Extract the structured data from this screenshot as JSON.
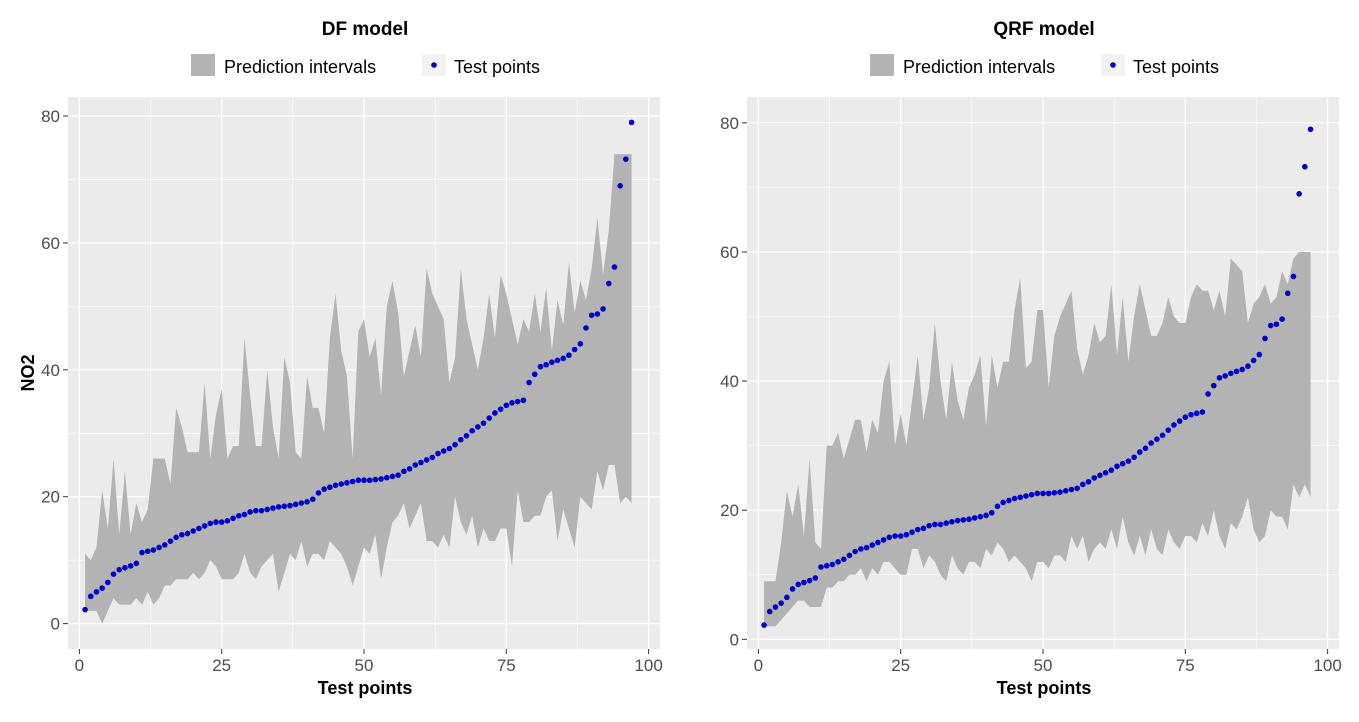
{
  "chart_data": [
    {
      "type": "area",
      "title": "DF model",
      "xlabel": "Test points",
      "ylabel": "NO2",
      "xlim": [
        -2,
        102
      ],
      "ylim": [
        -4,
        83
      ],
      "xticks": [
        0,
        25,
        50,
        75,
        100
      ],
      "yticks": [
        0,
        20,
        40,
        60,
        80
      ],
      "grid": true,
      "legend": {
        "position": "top",
        "items": [
          {
            "label": "Prediction intervals",
            "kind": "band",
            "color": "#b3b3b3"
          },
          {
            "label": "Test points",
            "kind": "point",
            "color": "#0000cd"
          }
        ]
      },
      "series": [
        {
          "name": "Prediction intervals",
          "x": [
            1,
            2,
            3,
            4,
            5,
            6,
            7,
            8,
            9,
            10,
            11,
            12,
            13,
            14,
            15,
            16,
            17,
            18,
            19,
            20,
            21,
            22,
            23,
            24,
            25,
            26,
            27,
            28,
            29,
            30,
            31,
            32,
            33,
            34,
            35,
            36,
            37,
            38,
            39,
            40,
            41,
            42,
            43,
            44,
            45,
            46,
            47,
            48,
            49,
            50,
            51,
            52,
            53,
            54,
            55,
            56,
            57,
            58,
            59,
            60,
            61,
            62,
            63,
            64,
            65,
            66,
            67,
            68,
            69,
            70,
            71,
            72,
            73,
            74,
            75,
            76,
            77,
            78,
            79,
            80,
            81,
            82,
            83,
            84,
            85,
            86,
            87,
            88,
            89,
            90,
            91,
            92,
            93,
            94,
            95,
            96,
            97
          ],
          "lower": [
            2,
            2,
            2,
            0,
            2,
            4,
            3,
            3,
            3,
            4,
            3,
            5,
            3,
            4,
            6,
            6,
            7,
            7,
            7,
            8,
            7,
            8,
            10,
            9,
            7,
            7,
            7,
            8,
            11,
            8,
            7,
            9,
            10,
            11,
            5,
            8,
            11,
            10,
            13,
            9,
            11,
            11,
            10,
            13,
            12,
            11,
            9,
            6,
            9,
            12,
            11,
            14,
            7,
            12,
            16,
            17,
            19,
            15,
            17,
            19,
            13,
            13,
            12,
            14,
            12,
            20,
            16,
            14,
            17,
            12,
            15,
            13,
            13,
            15,
            15,
            9,
            21,
            16,
            16,
            17,
            17,
            20,
            21,
            13,
            18,
            15,
            12,
            20,
            19,
            18,
            24,
            21,
            25,
            25,
            19,
            20,
            19
          ],
          "upper": [
            11,
            10,
            12,
            21,
            15,
            26,
            14,
            24,
            14,
            19,
            16,
            18,
            26,
            26,
            26,
            22,
            34,
            31,
            27,
            27,
            27,
            38,
            26,
            33,
            37,
            26,
            28,
            28,
            45,
            36,
            28,
            28,
            40,
            31,
            26,
            42,
            38,
            27,
            26,
            39,
            34,
            34,
            30,
            45,
            52,
            43,
            39,
            26,
            46,
            48,
            42,
            45,
            36,
            50,
            54,
            49,
            39,
            43,
            47,
            42,
            56,
            52,
            50,
            48,
            38,
            42,
            56,
            48,
            44,
            40,
            45,
            52,
            45,
            55,
            52,
            48,
            44,
            48,
            46,
            52,
            46,
            53,
            43,
            51,
            47,
            57,
            49,
            54,
            51,
            56,
            64,
            55,
            62,
            74,
            74,
            74,
            74
          ]
        },
        {
          "name": "Test points",
          "x": [
            1,
            2,
            3,
            4,
            5,
            6,
            7,
            8,
            9,
            10,
            11,
            12,
            13,
            14,
            15,
            16,
            17,
            18,
            19,
            20,
            21,
            22,
            23,
            24,
            25,
            26,
            27,
            28,
            29,
            30,
            31,
            32,
            33,
            34,
            35,
            36,
            37,
            38,
            39,
            40,
            41,
            42,
            43,
            44,
            45,
            46,
            47,
            48,
            49,
            50,
            51,
            52,
            53,
            54,
            55,
            56,
            57,
            58,
            59,
            60,
            61,
            62,
            63,
            64,
            65,
            66,
            67,
            68,
            69,
            70,
            71,
            72,
            73,
            74,
            75,
            76,
            77,
            78,
            79,
            80,
            81,
            82,
            83,
            84,
            85,
            86,
            87,
            88,
            89,
            90,
            91,
            92,
            93,
            94,
            95,
            96,
            97
          ],
          "y": [
            2.2,
            4.3,
            5,
            5.6,
            6.5,
            7.8,
            8.5,
            8.8,
            9.1,
            9.5,
            11.2,
            11.4,
            11.6,
            12,
            12.4,
            13,
            13.6,
            14,
            14.2,
            14.6,
            15,
            15.4,
            15.8,
            16,
            16,
            16.2,
            16.6,
            17,
            17.2,
            17.6,
            17.8,
            17.8,
            18,
            18.2,
            18.4,
            18.5,
            18.6,
            18.8,
            19,
            19.2,
            19.6,
            20.6,
            21.2,
            21.5,
            21.8,
            22,
            22.2,
            22.4,
            22.6,
            22.6,
            22.6,
            22.7,
            22.8,
            23,
            23.2,
            23.4,
            24,
            24.4,
            25,
            25.4,
            25.8,
            26.2,
            26.8,
            27.2,
            27.6,
            28.2,
            29,
            29.6,
            30.4,
            31,
            31.6,
            32.4,
            33.2,
            33.8,
            34.4,
            34.8,
            35,
            35.2,
            38,
            39.3,
            40.5,
            40.8,
            41.2,
            41.5,
            41.8,
            42.3,
            43.2,
            44.1,
            46.6,
            48.6,
            48.8,
            49.6,
            53.6,
            56.2,
            69,
            73.2,
            79
          ]
        }
      ]
    },
    {
      "type": "area",
      "title": "QRF model",
      "xlabel": "Test points",
      "ylabel": "",
      "xlim": [
        -2,
        102
      ],
      "ylim": [
        -1.5,
        84
      ],
      "xticks": [
        0,
        25,
        50,
        75,
        100
      ],
      "yticks": [
        0,
        20,
        40,
        60,
        80
      ],
      "grid": true,
      "legend": {
        "position": "top",
        "items": [
          {
            "label": "Prediction intervals",
            "kind": "band",
            "color": "#b3b3b3"
          },
          {
            "label": "Test points",
            "kind": "point",
            "color": "#0000cd"
          }
        ]
      },
      "series": [
        {
          "name": "Prediction intervals",
          "x": [
            1,
            2,
            3,
            4,
            5,
            6,
            7,
            8,
            9,
            10,
            11,
            12,
            13,
            14,
            15,
            16,
            17,
            18,
            19,
            20,
            21,
            22,
            23,
            24,
            25,
            26,
            27,
            28,
            29,
            30,
            31,
            32,
            33,
            34,
            35,
            36,
            37,
            38,
            39,
            40,
            41,
            42,
            43,
            44,
            45,
            46,
            47,
            48,
            49,
            50,
            51,
            52,
            53,
            54,
            55,
            56,
            57,
            58,
            59,
            60,
            61,
            62,
            63,
            64,
            65,
            66,
            67,
            68,
            69,
            70,
            71,
            72,
            73,
            74,
            75,
            76,
            77,
            78,
            79,
            80,
            81,
            82,
            83,
            84,
            85,
            86,
            87,
            88,
            89,
            90,
            91,
            92,
            93,
            94,
            95,
            96,
            97
          ],
          "lower": [
            2,
            2,
            2,
            3,
            4,
            5,
            6,
            6,
            5,
            5,
            5,
            8,
            8,
            9,
            9,
            10,
            10,
            11,
            9,
            11,
            10,
            12,
            12,
            11,
            10,
            10,
            14,
            14,
            11,
            13,
            12,
            10,
            9,
            13,
            11,
            10,
            12,
            12,
            11,
            14,
            13,
            15,
            14,
            12,
            13,
            12,
            11,
            9,
            12,
            12,
            11,
            13,
            13,
            12,
            16,
            14,
            16,
            12,
            14,
            15,
            14,
            17,
            14,
            19,
            15,
            13,
            16,
            13,
            17,
            14,
            13,
            17,
            15,
            14,
            16,
            16,
            15,
            18,
            16,
            20,
            16,
            14,
            18,
            17,
            19,
            22,
            17,
            15,
            16,
            20,
            19,
            19,
            17,
            24,
            22,
            24,
            22
          ],
          "upper": [
            9,
            9,
            9,
            15,
            23,
            19,
            24,
            16,
            28,
            15,
            14,
            30,
            30,
            32,
            28,
            31,
            34,
            34,
            29,
            34,
            32,
            40,
            43,
            30,
            35,
            30,
            37,
            44,
            34,
            39,
            49,
            40,
            34,
            43,
            37,
            34,
            39,
            41,
            44,
            33,
            44,
            39,
            43,
            43,
            51,
            56,
            42,
            43,
            51,
            51,
            39,
            47,
            50,
            52,
            54,
            45,
            41,
            44,
            49,
            46,
            47,
            55,
            44,
            53,
            43,
            50,
            55,
            51,
            47,
            47,
            49,
            53,
            50,
            49,
            49,
            53,
            55,
            54,
            54,
            51,
            54,
            50,
            59,
            58,
            57,
            49,
            52,
            53,
            55,
            52,
            53,
            57,
            55,
            59,
            60,
            60,
            60
          ]
        },
        {
          "name": "Test points",
          "x": [
            1,
            2,
            3,
            4,
            5,
            6,
            7,
            8,
            9,
            10,
            11,
            12,
            13,
            14,
            15,
            16,
            17,
            18,
            19,
            20,
            21,
            22,
            23,
            24,
            25,
            26,
            27,
            28,
            29,
            30,
            31,
            32,
            33,
            34,
            35,
            36,
            37,
            38,
            39,
            40,
            41,
            42,
            43,
            44,
            45,
            46,
            47,
            48,
            49,
            50,
            51,
            52,
            53,
            54,
            55,
            56,
            57,
            58,
            59,
            60,
            61,
            62,
            63,
            64,
            65,
            66,
            67,
            68,
            69,
            70,
            71,
            72,
            73,
            74,
            75,
            76,
            77,
            78,
            79,
            80,
            81,
            82,
            83,
            84,
            85,
            86,
            87,
            88,
            89,
            90,
            91,
            92,
            93,
            94,
            95,
            96,
            97
          ],
          "y": [
            2.2,
            4.3,
            5,
            5.6,
            6.5,
            7.8,
            8.5,
            8.8,
            9.1,
            9.5,
            11.2,
            11.4,
            11.6,
            12,
            12.4,
            13,
            13.6,
            14,
            14.2,
            14.6,
            15,
            15.4,
            15.8,
            16,
            16,
            16.2,
            16.6,
            17,
            17.2,
            17.6,
            17.8,
            17.8,
            18,
            18.2,
            18.4,
            18.5,
            18.6,
            18.8,
            19,
            19.2,
            19.6,
            20.6,
            21.2,
            21.5,
            21.8,
            22,
            22.2,
            22.4,
            22.6,
            22.6,
            22.6,
            22.7,
            22.8,
            23,
            23.2,
            23.4,
            24,
            24.4,
            25,
            25.4,
            25.8,
            26.2,
            26.8,
            27.2,
            27.6,
            28.2,
            29,
            29.6,
            30.4,
            31,
            31.6,
            32.4,
            33.2,
            33.8,
            34.4,
            34.8,
            35,
            35.2,
            38,
            39.3,
            40.5,
            40.8,
            41.2,
            41.5,
            41.8,
            42.3,
            43.2,
            44.1,
            46.6,
            48.6,
            48.8,
            49.6,
            53.6,
            56.2,
            69,
            73.2,
            79
          ]
        }
      ]
    }
  ]
}
